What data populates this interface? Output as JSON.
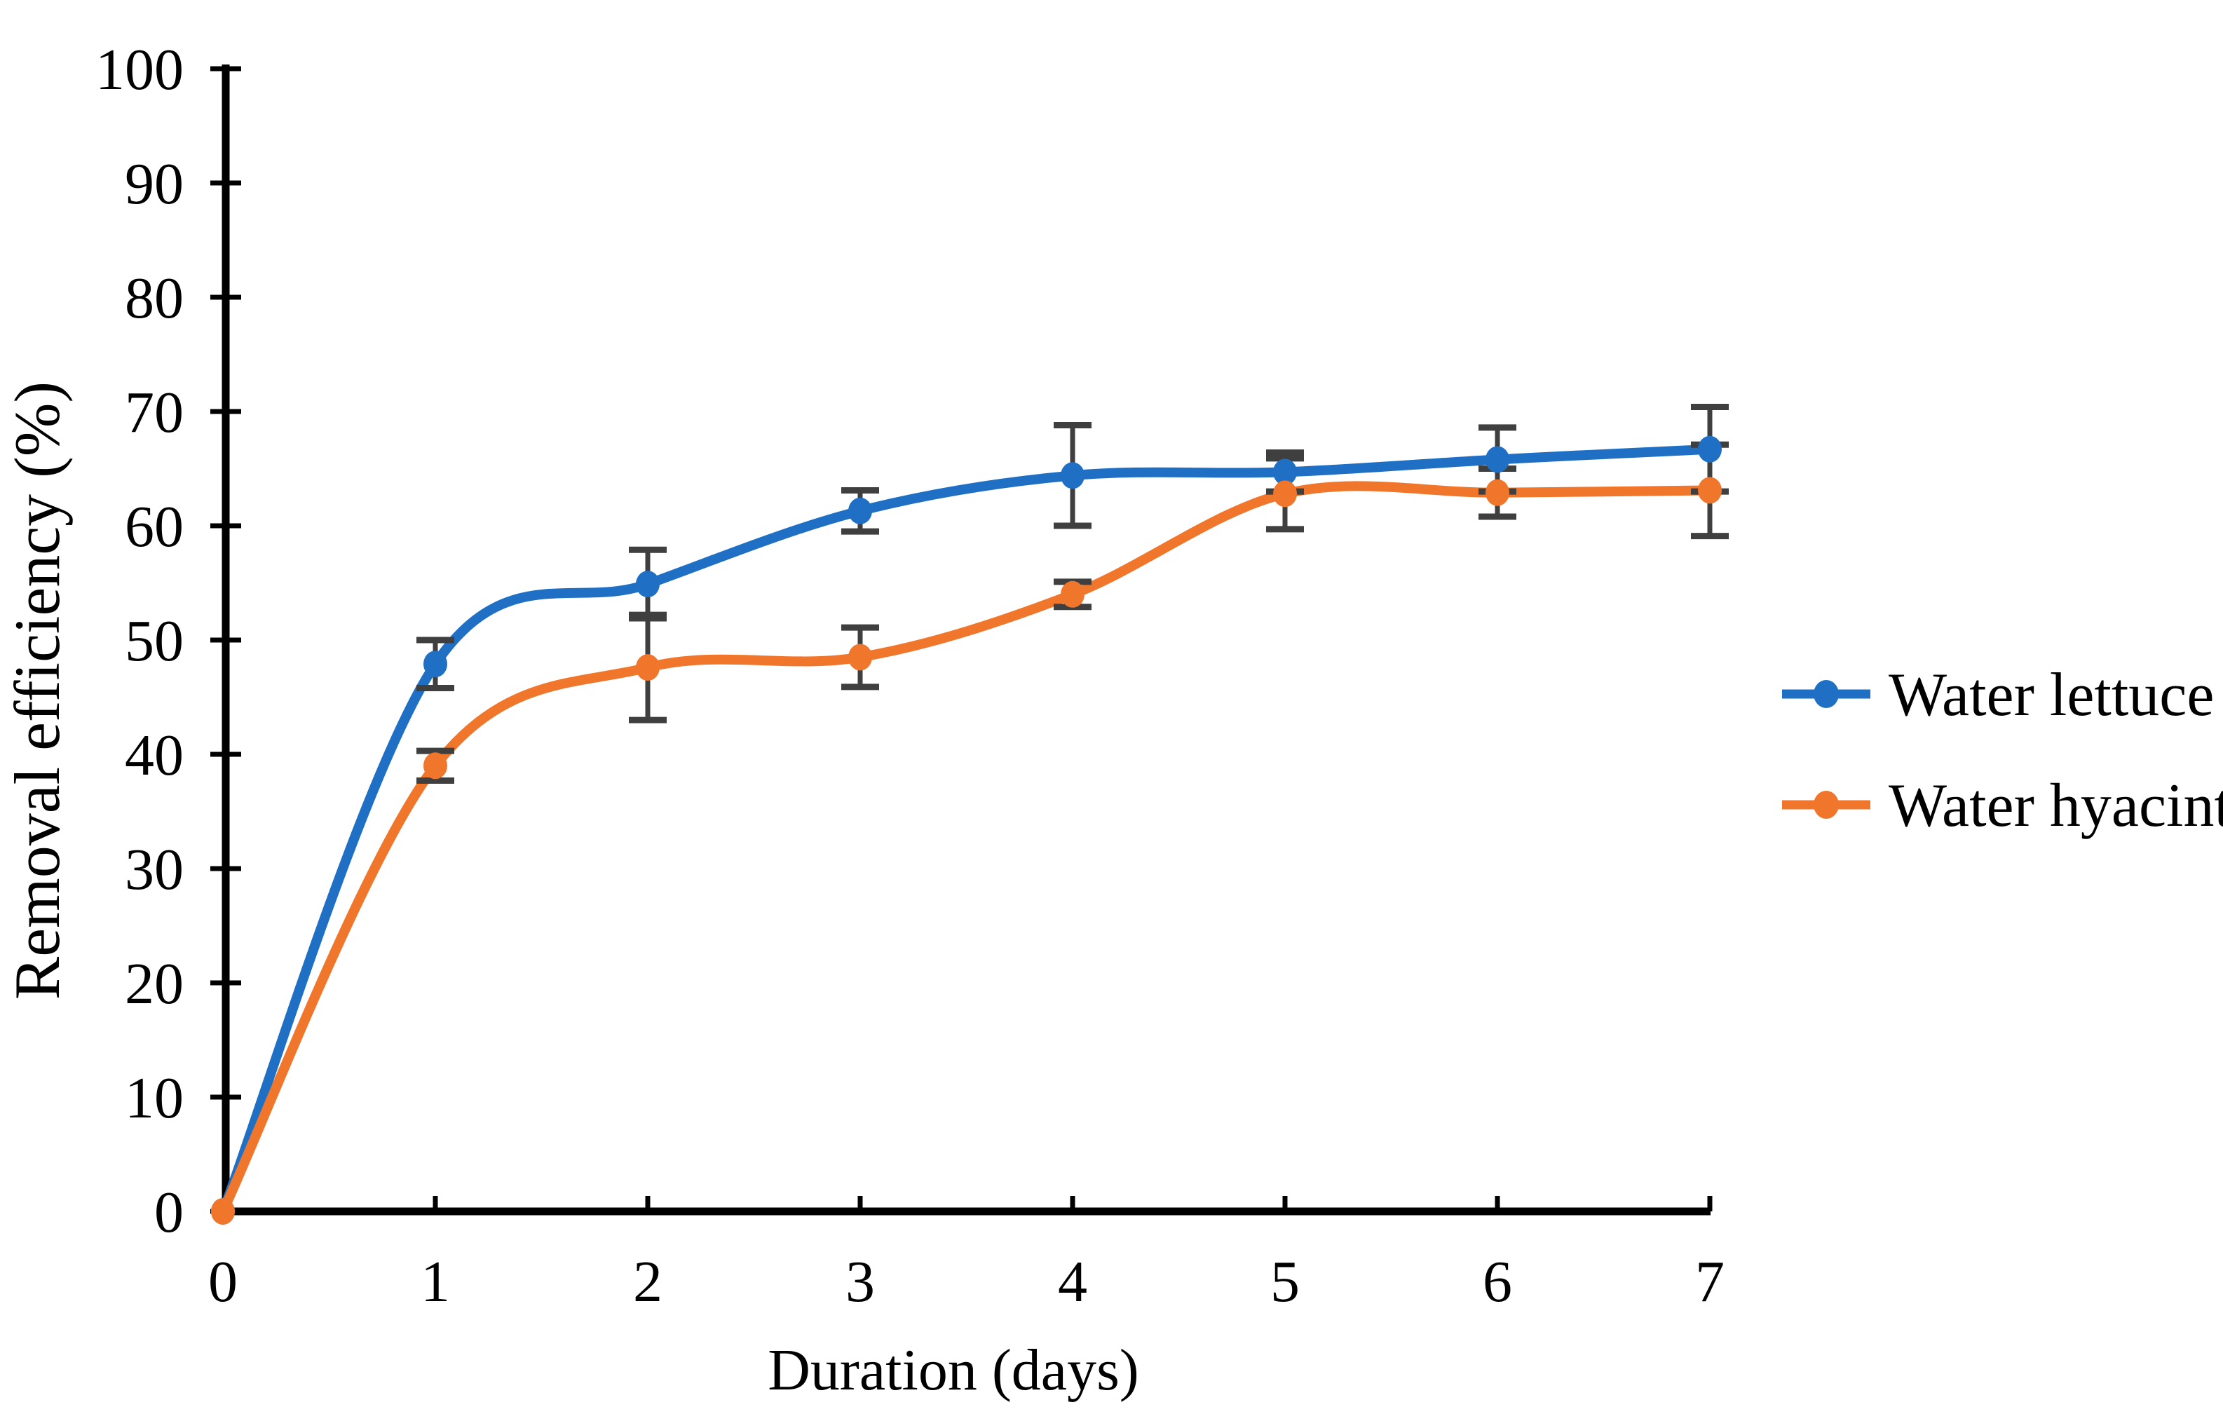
{
  "chart_data": {
    "type": "line",
    "title": "",
    "xlabel": "Duration (days)",
    "ylabel": "Removal efficiency (%)",
    "x": [
      0,
      1,
      2,
      3,
      4,
      5,
      6,
      7
    ],
    "x_tick_labels": [
      "0",
      "1",
      "2",
      "3",
      "4",
      "5",
      "6",
      "7"
    ],
    "y_tick_labels": [
      "0",
      "10",
      "20",
      "30",
      "40",
      "50",
      "60",
      "70",
      "80",
      "90",
      "100"
    ],
    "xlim": [
      0,
      7
    ],
    "ylim": [
      0,
      100
    ],
    "grid": false,
    "legend_position": "right",
    "marker": "circle",
    "line_style": "smooth",
    "error_bar_color": "#3f3f3f",
    "axis_color": "#000000",
    "series": [
      {
        "name": "Water lettuce",
        "color": "#1f6fc5",
        "values": [
          0,
          47.9,
          54.9,
          61.3,
          64.4,
          64.7,
          65.8,
          66.7
        ],
        "errors": [
          0,
          2.1,
          3.0,
          1.8,
          4.4,
          1.7,
          2.8,
          3.7
        ]
      },
      {
        "name": "Water hyacinth",
        "color": "#f0762c",
        "values": [
          0,
          39.0,
          47.6,
          48.5,
          54.0,
          62.8,
          62.9,
          63.1
        ],
        "errors": [
          0,
          1.3,
          4.6,
          2.6,
          1.1,
          3.1,
          2.1,
          4.0
        ]
      }
    ]
  }
}
